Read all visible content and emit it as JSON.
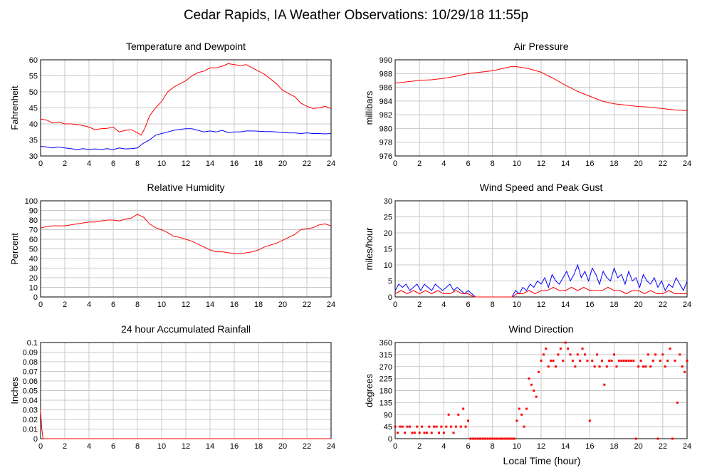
{
  "page": {
    "title": "Cedar Rapids, IA Weather Observations: 10/29/18 11:55p",
    "xlabel": "Local Time (hour)"
  },
  "chart_data": [
    {
      "id": "temp",
      "type": "line",
      "title": "Temperature and Dewpoint",
      "xlabel": "",
      "ylabel": "Fahrenheit",
      "xlim": [
        0,
        24
      ],
      "ylim": [
        30,
        60
      ],
      "xticks": [
        0,
        2,
        4,
        6,
        8,
        10,
        12,
        14,
        16,
        18,
        20,
        22,
        24
      ],
      "yticks": [
        30,
        35,
        40,
        45,
        50,
        55,
        60
      ],
      "series": [
        {
          "color": "#ff0000",
          "x": [
            0,
            0.5,
            1,
            1.5,
            2,
            2.5,
            3,
            3.5,
            4,
            4.5,
            5,
            5.5,
            6,
            6.5,
            7,
            7.5,
            8,
            8.3,
            8.6,
            9,
            9.5,
            10,
            10.5,
            11,
            11.5,
            12,
            12.5,
            13,
            13.5,
            14,
            14.5,
            15,
            15.5,
            16,
            16.5,
            17,
            17.5,
            18,
            18.5,
            19,
            19.5,
            20,
            20.5,
            21,
            21.5,
            22,
            22.5,
            23,
            23.5,
            24
          ],
          "y": [
            41.5,
            41.2,
            40.3,
            40.6,
            40.0,
            40.0,
            39.8,
            39.5,
            39.0,
            38.2,
            38.5,
            38.6,
            39.0,
            37.5,
            38.0,
            38.2,
            37.2,
            36.5,
            38.5,
            42.5,
            45.0,
            47.0,
            50.0,
            51.5,
            52.5,
            53.5,
            55.0,
            56.0,
            56.5,
            57.5,
            57.5,
            58.0,
            58.8,
            58.5,
            58.2,
            58.5,
            57.5,
            56.5,
            55.5,
            54.0,
            52.5,
            50.5,
            49.5,
            48.5,
            46.5,
            45.5,
            44.8,
            45.0,
            45.5,
            44.8
          ]
        },
        {
          "color": "#0000ff",
          "x": [
            0,
            0.5,
            1,
            1.5,
            2,
            2.5,
            3,
            3.5,
            4,
            4.5,
            5,
            5.5,
            6,
            6.5,
            7,
            7.5,
            8,
            8.5,
            9,
            9.5,
            10,
            10.5,
            11,
            11.5,
            12,
            12.5,
            13,
            13.5,
            14,
            14.5,
            15,
            15.5,
            16,
            16.5,
            17,
            17.5,
            18,
            18.5,
            19,
            19.5,
            20,
            20.5,
            21,
            21.5,
            22,
            22.5,
            23,
            23.5,
            24
          ],
          "y": [
            33.0,
            32.8,
            32.5,
            32.8,
            32.5,
            32.3,
            32.0,
            32.3,
            32.0,
            32.2,
            32.0,
            32.3,
            32.0,
            32.5,
            32.2,
            32.3,
            32.5,
            34.0,
            35.0,
            36.5,
            37.0,
            37.5,
            38.0,
            38.3,
            38.5,
            38.5,
            38.0,
            37.5,
            37.8,
            37.5,
            38.0,
            37.3,
            37.5,
            37.5,
            37.8,
            37.8,
            37.7,
            37.6,
            37.6,
            37.5,
            37.3,
            37.2,
            37.2,
            37.0,
            37.2,
            37.0,
            37.0,
            36.9,
            37.0
          ]
        }
      ]
    },
    {
      "id": "pres",
      "type": "line",
      "title": "Air Pressure",
      "xlabel": "",
      "ylabel": "millibars",
      "xlim": [
        0,
        24
      ],
      "ylim": [
        976,
        990
      ],
      "xticks": [
        0,
        2,
        4,
        6,
        8,
        10,
        12,
        14,
        16,
        18,
        20,
        22,
        24
      ],
      "yticks": [
        976,
        978,
        980,
        982,
        984,
        986,
        988,
        990
      ],
      "series": [
        {
          "color": "#ff0000",
          "x": [
            0,
            1,
            2,
            3,
            4,
            5,
            6,
            7,
            8,
            9,
            9.5,
            10,
            11,
            12,
            13,
            14,
            15,
            16,
            17,
            18,
            19,
            20,
            21,
            22,
            23,
            24
          ],
          "y": [
            986.6,
            986.8,
            987.0,
            987.1,
            987.3,
            987.6,
            988.0,
            988.2,
            988.4,
            988.8,
            989.0,
            989.0,
            988.7,
            988.2,
            987.3,
            986.3,
            985.4,
            984.7,
            984.0,
            983.6,
            983.4,
            983.2,
            983.1,
            982.9,
            982.7,
            982.6
          ]
        }
      ]
    },
    {
      "id": "rh",
      "type": "line",
      "title": "Relative Humidity",
      "xlabel": "",
      "ylabel": "Percent",
      "xlim": [
        0,
        24
      ],
      "ylim": [
        0,
        100
      ],
      "xticks": [
        0,
        2,
        4,
        6,
        8,
        10,
        12,
        14,
        16,
        18,
        20,
        22,
        24
      ],
      "yticks": [
        0,
        10,
        20,
        30,
        40,
        50,
        60,
        70,
        80,
        90,
        100
      ],
      "series": [
        {
          "color": "#ff0000",
          "x": [
            0,
            0.5,
            1,
            1.5,
            2,
            2.5,
            3,
            3.5,
            4,
            4.5,
            5,
            5.5,
            6,
            6.5,
            7,
            7.5,
            8,
            8.5,
            9,
            9.5,
            10,
            10.5,
            11,
            11.5,
            12,
            12.5,
            13,
            13.5,
            14,
            14.5,
            15,
            15.5,
            16,
            16.5,
            17,
            17.5,
            18,
            18.5,
            19,
            19.5,
            20,
            20.5,
            21,
            21.5,
            22,
            22.5,
            23,
            23.5,
            24
          ],
          "y": [
            72,
            73,
            74,
            74,
            74,
            75,
            76,
            77,
            78,
            78,
            79,
            80,
            80,
            79,
            81,
            82,
            86,
            83,
            76,
            72,
            70,
            67,
            63,
            62,
            60,
            58,
            55,
            52,
            49,
            47,
            47,
            46,
            45,
            45,
            46,
            47,
            49,
            52,
            54,
            56,
            59,
            62,
            65,
            70,
            71,
            72,
            75,
            76,
            74
          ]
        }
      ]
    },
    {
      "id": "wind",
      "type": "line",
      "title": "Wind Speed and Peak Gust",
      "xlabel": "",
      "ylabel": "miles/hour",
      "xlim": [
        0,
        24
      ],
      "ylim": [
        0,
        30
      ],
      "xticks": [
        0,
        2,
        4,
        6,
        8,
        10,
        12,
        14,
        16,
        18,
        20,
        22,
        24
      ],
      "yticks": [
        0,
        5,
        10,
        15,
        20,
        25,
        30
      ],
      "series": [
        {
          "color": "#0000ff",
          "x": [
            0,
            0.3,
            0.6,
            0.9,
            1.2,
            1.5,
            1.8,
            2.1,
            2.4,
            2.7,
            3,
            3.3,
            3.6,
            3.9,
            4.2,
            4.5,
            4.8,
            5.1,
            5.4,
            5.7,
            6,
            6.3,
            6.6,
            9.6,
            9.9,
            10.2,
            10.5,
            10.8,
            11.1,
            11.4,
            11.7,
            12,
            12.3,
            12.6,
            12.9,
            13.2,
            13.5,
            13.8,
            14.1,
            14.4,
            14.7,
            15,
            15.3,
            15.6,
            15.9,
            16.2,
            16.5,
            16.8,
            17.1,
            17.4,
            17.7,
            18,
            18.3,
            18.6,
            18.9,
            19.2,
            19.5,
            19.8,
            20.1,
            20.4,
            20.7,
            21,
            21.3,
            21.6,
            21.9,
            22.2,
            22.5,
            22.8,
            23.1,
            23.4,
            23.7,
            24
          ],
          "y": [
            2,
            4,
            3,
            4,
            2,
            3,
            4,
            2,
            4,
            3,
            2,
            4,
            3,
            2,
            3,
            4,
            2,
            3,
            2,
            1,
            2,
            1,
            0,
            0,
            2,
            1,
            3,
            2,
            4,
            3,
            5,
            4,
            6,
            3,
            7,
            5,
            4,
            6,
            8,
            5,
            7,
            10,
            6,
            8,
            5,
            9,
            7,
            4,
            8,
            6,
            5,
            9,
            6,
            7,
            4,
            8,
            5,
            6,
            3,
            7,
            5,
            4,
            6,
            3,
            5,
            2,
            4,
            3,
            6,
            4,
            2,
            5
          ]
        },
        {
          "color": "#ff0000",
          "x": [
            0,
            0.5,
            1,
            1.5,
            2,
            2.5,
            3,
            3.5,
            4,
            4.5,
            5,
            5.5,
            6,
            6.5,
            9.6,
            10,
            10.5,
            11,
            11.5,
            12,
            12.5,
            13,
            13.5,
            14,
            14.5,
            15,
            15.5,
            16,
            16.5,
            17,
            17.5,
            18,
            18.5,
            19,
            19.5,
            20,
            20.5,
            21,
            21.5,
            22,
            22.5,
            23,
            23.5,
            24
          ],
          "y": [
            1,
            2,
            1,
            2,
            1,
            2,
            1,
            2,
            1,
            1,
            2,
            1,
            1,
            0,
            0,
            1,
            1,
            2,
            1,
            2,
            2,
            3,
            2,
            2,
            3,
            2,
            3,
            2,
            2,
            2,
            3,
            2,
            2,
            1,
            2,
            2,
            1,
            2,
            1,
            1,
            2,
            1,
            1,
            1
          ]
        }
      ]
    },
    {
      "id": "rain",
      "type": "line",
      "title": "24 hour Accumulated Rainfall",
      "xlabel": "",
      "ylabel": "Inches",
      "xlim": [
        0,
        24
      ],
      "ylim": [
        0,
        0.1
      ],
      "xticks": [
        0,
        2,
        4,
        6,
        8,
        10,
        12,
        14,
        16,
        18,
        20,
        22,
        24
      ],
      "yticks": [
        0,
        0.01,
        0.02,
        0.03,
        0.04,
        0.05,
        0.06,
        0.07,
        0.08,
        0.09,
        0.1
      ],
      "series": [
        {
          "color": "#ff0000",
          "x": [
            0,
            0.1,
            0.2,
            24
          ],
          "y": [
            0.03,
            0.01,
            0,
            0
          ]
        }
      ]
    },
    {
      "id": "dir",
      "type": "scatter",
      "title": "Wind Direction",
      "xlabel": "Local Time (hour)",
      "ylabel": "degrees",
      "xlim": [
        0,
        24
      ],
      "ylim": [
        0,
        360
      ],
      "xticks": [
        0,
        2,
        4,
        6,
        8,
        10,
        12,
        14,
        16,
        18,
        20,
        22,
        24
      ],
      "yticks": [
        0,
        45,
        90,
        135,
        180,
        225,
        270,
        315,
        360
      ],
      "series": [
        {
          "color": "#ff0000",
          "x": [
            0,
            0.2,
            0.4,
            0.6,
            0.8,
            1,
            1.2,
            1.4,
            1.6,
            1.8,
            2,
            2.2,
            2.4,
            2.6,
            2.8,
            3,
            3.2,
            3.4,
            3.6,
            3.8,
            4,
            4.2,
            4.4,
            4.6,
            4.8,
            5,
            5.2,
            5.4,
            5.6,
            5.8,
            6,
            6.2,
            6.4,
            6.6,
            6.8,
            7,
            7.2,
            7.4,
            7.6,
            7.8,
            8,
            8.2,
            8.4,
            8.6,
            8.8,
            9,
            9.2,
            9.4,
            9.6,
            9.8,
            10,
            10.2,
            10.4,
            10.6,
            10.8,
            11,
            11.2,
            11.4,
            11.6,
            11.8,
            12,
            12.2,
            12.4,
            12.6,
            12.8,
            13,
            13.2,
            13.4,
            13.6,
            13.8,
            14,
            14.2,
            14.4,
            14.6,
            14.8,
            15,
            15.2,
            15.4,
            15.6,
            15.8,
            16,
            16.2,
            16.4,
            16.6,
            16.8,
            17,
            17.2,
            17.4,
            17.6,
            17.8,
            18,
            18.2,
            18.4,
            18.6,
            18.8,
            19,
            19.2,
            19.4,
            19.6,
            19.8,
            20,
            20.2,
            20.4,
            20.6,
            20.8,
            21,
            21.2,
            21.4,
            21.6,
            21.8,
            22,
            22.2,
            22.4,
            22.6,
            22.8,
            23,
            23.2,
            23.4,
            23.6,
            23.8,
            24
          ],
          "y": [
            45,
            22,
            45,
            45,
            22,
            45,
            45,
            22,
            22,
            45,
            22,
            45,
            22,
            22,
            45,
            22,
            45,
            45,
            22,
            45,
            22,
            45,
            90,
            45,
            22,
            45,
            90,
            45,
            112,
            45,
            67,
            0,
            0,
            0,
            0,
            0,
            0,
            0,
            0,
            0,
            0,
            0,
            0,
            0,
            0,
            0,
            0,
            0,
            0,
            0,
            67,
            112,
            90,
            45,
            112,
            225,
            202,
            180,
            157,
            250,
            292,
            315,
            337,
            270,
            292,
            292,
            270,
            315,
            337,
            292,
            360,
            337,
            315,
            292,
            270,
            315,
            292,
            337,
            315,
            292,
            67,
            292,
            270,
            315,
            270,
            292,
            202,
            270,
            292,
            292,
            315,
            270,
            292,
            292,
            292,
            292,
            292,
            292,
            292,
            0,
            270,
            292,
            270,
            270,
            315,
            270,
            292,
            315,
            0,
            292,
            315,
            270,
            292,
            337,
            0,
            292,
            135,
            315,
            270,
            250,
            292
          ]
        }
      ]
    }
  ]
}
